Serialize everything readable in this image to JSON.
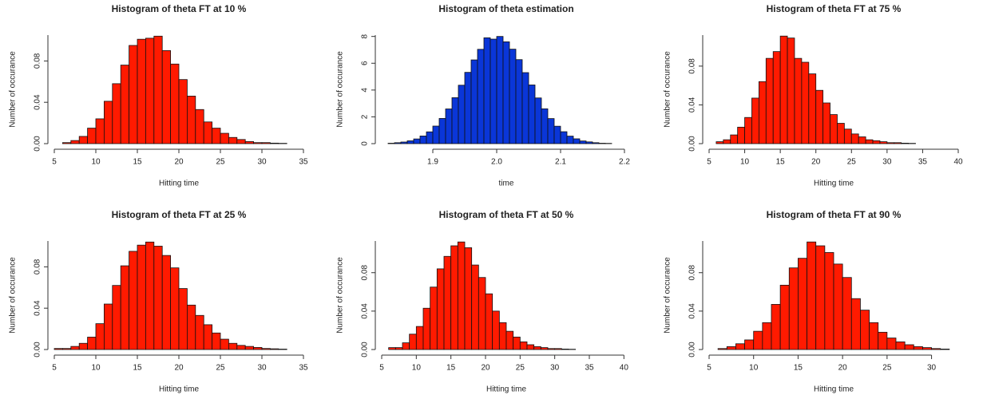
{
  "chart_data": [
    {
      "type": "histogram",
      "title": "Histogram of theta FT at 10 %",
      "x_label": "Hitting time",
      "y_label": "Number of occurance",
      "color": "#ff1a00",
      "bins": [
        6,
        7,
        8,
        9,
        10,
        11,
        12,
        13,
        14,
        15,
        16,
        17,
        18,
        19,
        20,
        21,
        22,
        23,
        24,
        25,
        26,
        27,
        28,
        29,
        30,
        31,
        32,
        33
      ],
      "values": [
        0.001,
        0.003,
        0.007,
        0.015,
        0.024,
        0.041,
        0.058,
        0.076,
        0.095,
        0.101,
        0.102,
        0.104,
        0.09,
        0.077,
        0.062,
        0.046,
        0.033,
        0.021,
        0.015,
        0.01,
        0.006,
        0.004,
        0.002,
        0.001,
        0.001,
        0.0005,
        0.0003
      ],
      "xlim": [
        5,
        35
      ],
      "xticks": [
        5,
        10,
        15,
        20,
        25,
        30,
        35
      ],
      "ylim": [
        0,
        0.105
      ],
      "yticks": [
        {
          "value": 0,
          "label": "0.00"
        },
        {
          "value": 0.04,
          "label": "0.04"
        },
        {
          "value": 0.08,
          "label": "0.08"
        }
      ]
    },
    {
      "type": "histogram",
      "title": "Histogram of theta estimation",
      "x_label": "time",
      "y_label": "Number of occurance",
      "color": "#0a36d8",
      "bins": [
        1.83,
        1.84,
        1.85,
        1.86,
        1.87,
        1.88,
        1.89,
        1.9,
        1.91,
        1.92,
        1.93,
        1.94,
        1.95,
        1.96,
        1.97,
        1.98,
        1.99,
        2.0,
        2.01,
        2.02,
        2.03,
        2.04,
        2.05,
        2.06,
        2.07,
        2.08,
        2.09,
        2.1,
        2.11,
        2.12,
        2.13,
        2.14,
        2.15,
        2.16,
        2.17,
        2.18
      ],
      "values": [
        0.03,
        0.07,
        0.12,
        0.21,
        0.35,
        0.57,
        0.88,
        1.31,
        1.88,
        2.59,
        3.43,
        4.36,
        5.32,
        6.25,
        7.04,
        7.9,
        7.8,
        8.0,
        7.6,
        7.05,
        6.27,
        5.3,
        4.38,
        3.41,
        2.6,
        1.87,
        1.3,
        0.89,
        0.56,
        0.36,
        0.2,
        0.13,
        0.07,
        0.03,
        0.02
      ],
      "xlim": [
        1.82,
        2.21
      ],
      "xticks": [
        1.9,
        {
          "value": 2,
          "label": "2.0"
        },
        2.1,
        2.2
      ],
      "ylim": [
        0,
        8.1
      ],
      "yticks": [
        0,
        2,
        4,
        6,
        8
      ]
    },
    {
      "type": "histogram",
      "title": "Histogram of theta FT at 75 %",
      "x_label": "Hitting time",
      "y_label": "Number of occurance",
      "color": "#ff1a00",
      "bins": [
        6,
        7,
        8,
        9,
        10,
        11,
        12,
        13,
        14,
        15,
        16,
        17,
        18,
        19,
        20,
        21,
        22,
        23,
        24,
        25,
        26,
        27,
        28,
        29,
        30,
        31,
        32,
        33,
        34
      ],
      "values": [
        0.002,
        0.004,
        0.009,
        0.017,
        0.027,
        0.047,
        0.064,
        0.088,
        0.095,
        0.111,
        0.109,
        0.088,
        0.084,
        0.072,
        0.055,
        0.042,
        0.03,
        0.021,
        0.015,
        0.01,
        0.007,
        0.004,
        0.003,
        0.002,
        0.001,
        0.001,
        0.0005,
        0.0003
      ],
      "xlim": [
        5,
        40
      ],
      "xticks": [
        5,
        10,
        15,
        20,
        25,
        30,
        35,
        40
      ],
      "ylim": [
        0,
        0.112
      ],
      "yticks": [
        {
          "value": 0,
          "label": "0.00"
        },
        {
          "value": 0.04,
          "label": "0.04"
        },
        {
          "value": 0.08,
          "label": "0.08"
        }
      ]
    },
    {
      "type": "histogram",
      "title": "Histogram of theta FT at 25 %",
      "x_label": "Hitting time",
      "y_label": "Number of occurance",
      "color": "#ff1a00",
      "bins": [
        5,
        6,
        7,
        8,
        9,
        10,
        11,
        12,
        13,
        14,
        15,
        16,
        17,
        18,
        19,
        20,
        21,
        22,
        23,
        24,
        25,
        26,
        27,
        28,
        29,
        30,
        31,
        32,
        33
      ],
      "values": [
        0.001,
        0.001,
        0.003,
        0.006,
        0.012,
        0.025,
        0.044,
        0.062,
        0.081,
        0.095,
        0.101,
        0.104,
        0.1,
        0.091,
        0.079,
        0.059,
        0.043,
        0.033,
        0.024,
        0.016,
        0.01,
        0.006,
        0.004,
        0.003,
        0.002,
        0.001,
        0.0007,
        0.0004
      ],
      "xlim": [
        5,
        35
      ],
      "xticks": [
        5,
        10,
        15,
        20,
        25,
        30,
        35
      ],
      "ylim": [
        0,
        0.105
      ],
      "yticks": [
        {
          "value": 0,
          "label": "0.00"
        },
        {
          "value": 0.04,
          "label": "0.04"
        },
        {
          "value": 0.08,
          "label": "0.08"
        }
      ]
    },
    {
      "type": "histogram",
      "title": "Histogram of theta FT at 50 %",
      "x_label": "Hitting time",
      "y_label": "Number of occurance",
      "color": "#ff1a00",
      "bins": [
        6,
        7,
        8,
        9,
        10,
        11,
        12,
        13,
        14,
        15,
        16,
        17,
        18,
        19,
        20,
        21,
        22,
        23,
        24,
        25,
        26,
        27,
        28,
        29,
        30,
        31,
        32,
        33
      ],
      "values": [
        0.002,
        0.002,
        0.007,
        0.016,
        0.024,
        0.043,
        0.065,
        0.084,
        0.097,
        0.108,
        0.112,
        0.106,
        0.088,
        0.075,
        0.058,
        0.04,
        0.028,
        0.019,
        0.013,
        0.008,
        0.005,
        0.003,
        0.002,
        0.001,
        0.001,
        0.0005,
        0.0003
      ],
      "xlim": [
        5,
        41
      ],
      "xticks": [
        5,
        10,
        15,
        20,
        25,
        30,
        35,
        40
      ],
      "ylim": [
        0,
        0.113
      ],
      "yticks": [
        {
          "value": 0,
          "label": "0.00"
        },
        {
          "value": 0.04,
          "label": "0.04"
        },
        {
          "value": 0.08,
          "label": "0.08"
        }
      ]
    },
    {
      "type": "histogram",
      "title": "Histogram of theta FT at 90 %",
      "x_label": "Hitting time",
      "y_label": "Number of occurance",
      "color": "#ff1a00",
      "bins": [
        6,
        7,
        8,
        9,
        10,
        11,
        12,
        13,
        14,
        15,
        16,
        17,
        18,
        19,
        20,
        21,
        22,
        23,
        24,
        25,
        26,
        27,
        28,
        29,
        30,
        31,
        32
      ],
      "values": [
        0.001,
        0.003,
        0.006,
        0.01,
        0.019,
        0.028,
        0.047,
        0.067,
        0.085,
        0.095,
        0.112,
        0.108,
        0.101,
        0.089,
        0.075,
        0.053,
        0.041,
        0.028,
        0.018,
        0.012,
        0.008,
        0.005,
        0.003,
        0.002,
        0.001,
        0.0005
      ],
      "xlim": [
        5,
        33
      ],
      "xticks": [
        5,
        10,
        15,
        20,
        25,
        30
      ],
      "ylim": [
        0,
        0.113
      ],
      "yticks": [
        {
          "value": 0,
          "label": "0.00"
        },
        {
          "value": 0.04,
          "label": "0.04"
        },
        {
          "value": 0.08,
          "label": "0.08"
        }
      ]
    }
  ]
}
